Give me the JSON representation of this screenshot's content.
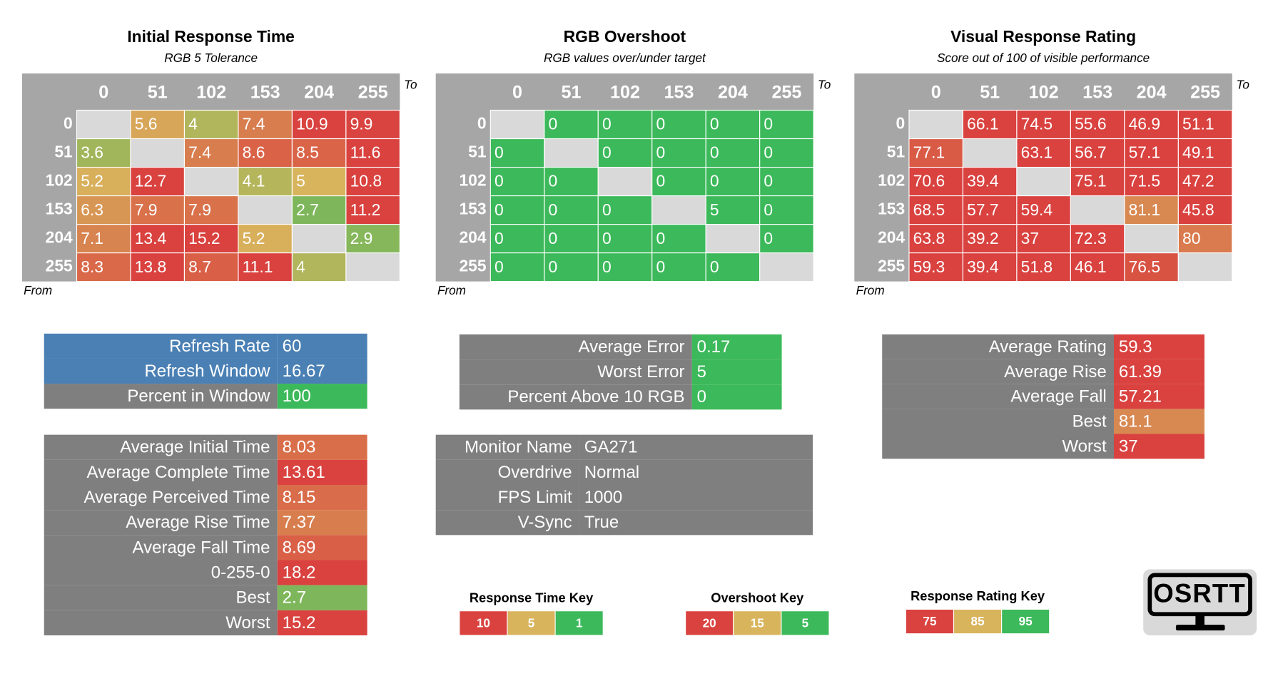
{
  "heatmaps": [
    {
      "title": "Initial Response Time",
      "subtitle": "RGB 5 Tolerance",
      "to": "To",
      "from": "From",
      "columns": [
        0,
        51,
        102,
        153,
        204,
        255
      ],
      "row_labels": [
        0,
        51,
        102,
        153,
        204,
        255
      ],
      "cells": [
        [
          null,
          5.6,
          4,
          7.4,
          10.9,
          9.9
        ],
        [
          3.6,
          null,
          7.4,
          8.6,
          8.5,
          11.6
        ],
        [
          5.2,
          12.7,
          null,
          4.1,
          5,
          10.8
        ],
        [
          6.3,
          7.9,
          7.9,
          null,
          2.7,
          11.2
        ],
        [
          7.1,
          13.4,
          15.2,
          5.2,
          null,
          2.9
        ],
        [
          8.3,
          13.8,
          8.7,
          11.1,
          4,
          null
        ]
      ]
    },
    {
      "title": "RGB Overshoot",
      "subtitle": "RGB values over/under target",
      "to": "To",
      "from": "From",
      "columns": [
        0,
        51,
        102,
        153,
        204,
        255
      ],
      "row_labels": [
        0,
        51,
        102,
        153,
        204,
        255
      ],
      "cells": [
        [
          null,
          0,
          0,
          0,
          0,
          0
        ],
        [
          0,
          null,
          0,
          0,
          0,
          0
        ],
        [
          0,
          0,
          null,
          0,
          0,
          0
        ],
        [
          0,
          0,
          0,
          null,
          5,
          0
        ],
        [
          0,
          0,
          0,
          0,
          null,
          0
        ],
        [
          0,
          0,
          0,
          0,
          0,
          null
        ]
      ]
    },
    {
      "title": "Visual Response Rating",
      "subtitle": "Score out of 100 of visible performance",
      "to": "To",
      "from": "From",
      "columns": [
        0,
        51,
        102,
        153,
        204,
        255
      ],
      "row_labels": [
        0,
        51,
        102,
        153,
        204,
        255
      ],
      "cells": [
        [
          null,
          66.1,
          74.5,
          55.6,
          46.9,
          51.1
        ],
        [
          77.1,
          null,
          63.1,
          56.7,
          57.1,
          49.1
        ],
        [
          70.6,
          39.4,
          null,
          75.1,
          71.5,
          47.2
        ],
        [
          68.5,
          57.7,
          59.4,
          null,
          81.1,
          45.8
        ],
        [
          63.8,
          39.2,
          37,
          72.3,
          null,
          80
        ],
        [
          59.3,
          39.4,
          51.8,
          46.1,
          76.5,
          null
        ]
      ]
    }
  ],
  "refresh_table": {
    "rows": [
      [
        "Refresh Rate",
        60
      ],
      [
        "Refresh Window",
        16.67
      ],
      [
        "Percent in Window",
        100
      ]
    ]
  },
  "time_table": {
    "rows": [
      [
        "Average Initial Time",
        8.03
      ],
      [
        "Average Complete Time",
        13.61
      ],
      [
        "Average Perceived Time",
        8.15
      ],
      [
        "Average Rise Time",
        7.37
      ],
      [
        "Average Fall Time",
        8.69
      ],
      [
        "0-255-0",
        18.2
      ],
      [
        "Best",
        2.7
      ],
      [
        "Worst",
        15.2
      ]
    ]
  },
  "overshoot_table": {
    "rows": [
      [
        "Average Error",
        0.17
      ],
      [
        "Worst Error",
        5
      ],
      [
        "Percent Above 10 RGB",
        0
      ]
    ]
  },
  "monitor_table": {
    "rows": [
      [
        "Monitor Name",
        "GA271"
      ],
      [
        "Overdrive",
        "Normal"
      ],
      [
        "FPS Limit",
        1000
      ],
      [
        "V-Sync",
        "True"
      ]
    ]
  },
  "rating_table": {
    "rows": [
      [
        "Average Rating",
        59.3
      ],
      [
        "Average Rise",
        61.39
      ],
      [
        "Average Fall",
        57.21
      ],
      [
        "Best",
        81.1
      ],
      [
        "Worst",
        37
      ]
    ]
  },
  "keys": [
    {
      "title": "Response Time Key",
      "stops": [
        {
          "value": 10,
          "color": "#d9423f"
        },
        {
          "value": 5,
          "color": "#d8b45c"
        },
        {
          "value": 1,
          "color": "#3cb95a"
        }
      ]
    },
    {
      "title": "Overshoot Key",
      "stops": [
        {
          "value": 20,
          "color": "#d9423f"
        },
        {
          "value": 15,
          "color": "#d8b45c"
        },
        {
          "value": 5,
          "color": "#3cb95a"
        }
      ]
    },
    {
      "title": "Response Rating Key",
      "stops": [
        {
          "value": 75,
          "color": "#d9423f"
        },
        {
          "value": 85,
          "color": "#d8b45c"
        },
        {
          "value": 95,
          "color": "#3cb95a"
        }
      ]
    }
  ],
  "logo": {
    "text": "OSRTT"
  }
}
